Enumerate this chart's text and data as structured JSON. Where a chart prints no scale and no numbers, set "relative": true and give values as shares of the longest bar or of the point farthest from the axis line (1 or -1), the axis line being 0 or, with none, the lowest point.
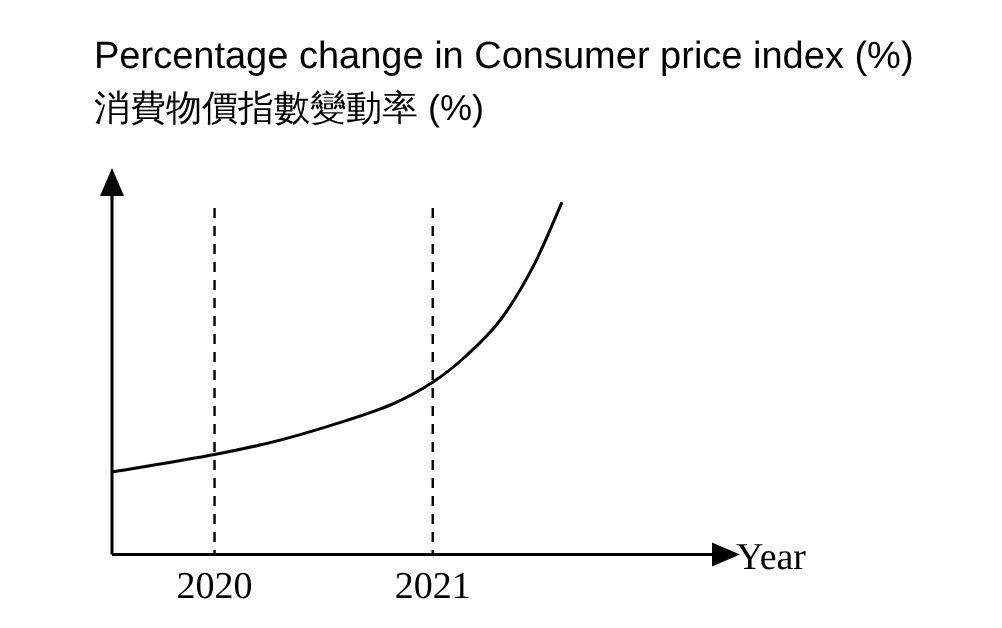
{
  "chart_data": {
    "type": "line",
    "title": "Percentage change in Consumer price index (%)",
    "subtitle": "消費物價指數變動率  (%)",
    "xlabel": "Year",
    "relative": true,
    "xlim": [
      2019.53,
      2022.39
    ],
    "xticks": [
      2020,
      2021
    ],
    "grid": false,
    "marker": "none",
    "line_style": "solid",
    "ref_lines": [
      {
        "axis": "x",
        "value": 2020,
        "line_style": "dashed"
      },
      {
        "axis": "x",
        "value": 2021,
        "line_style": "dashed"
      }
    ],
    "series": [
      {
        "color": "#000000",
        "x": [
          2019.53,
          2020,
          2020.3,
          2020.61,
          2020.82,
          2021,
          2021.15,
          2021.31,
          2021.46,
          2021.59
        ],
        "values": [
          0.235,
          0.285,
          0.326,
          0.383,
          0.43,
          0.491,
          0.564,
          0.668,
          0.82,
          1
        ]
      }
    ]
  }
}
